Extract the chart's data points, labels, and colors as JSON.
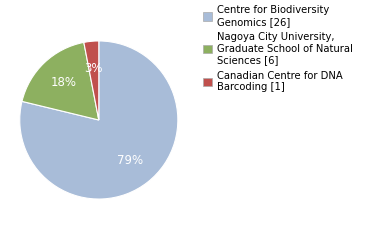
{
  "slices": [
    26,
    6,
    1
  ],
  "labels": [
    "Centre for Biodiversity\nGenomics [26]",
    "Nagoya City University,\nGraduate School of Natural\nSciences [6]",
    "Canadian Centre for DNA\nBarcoding [1]"
  ],
  "colors": [
    "#a8bcd8",
    "#8db060",
    "#c0504d"
  ],
  "autopct_color": "white",
  "background_color": "#ffffff",
  "legend_fontsize": 7.2,
  "pct_fontsize": 8.5,
  "startangle": 90,
  "counterclock": false
}
